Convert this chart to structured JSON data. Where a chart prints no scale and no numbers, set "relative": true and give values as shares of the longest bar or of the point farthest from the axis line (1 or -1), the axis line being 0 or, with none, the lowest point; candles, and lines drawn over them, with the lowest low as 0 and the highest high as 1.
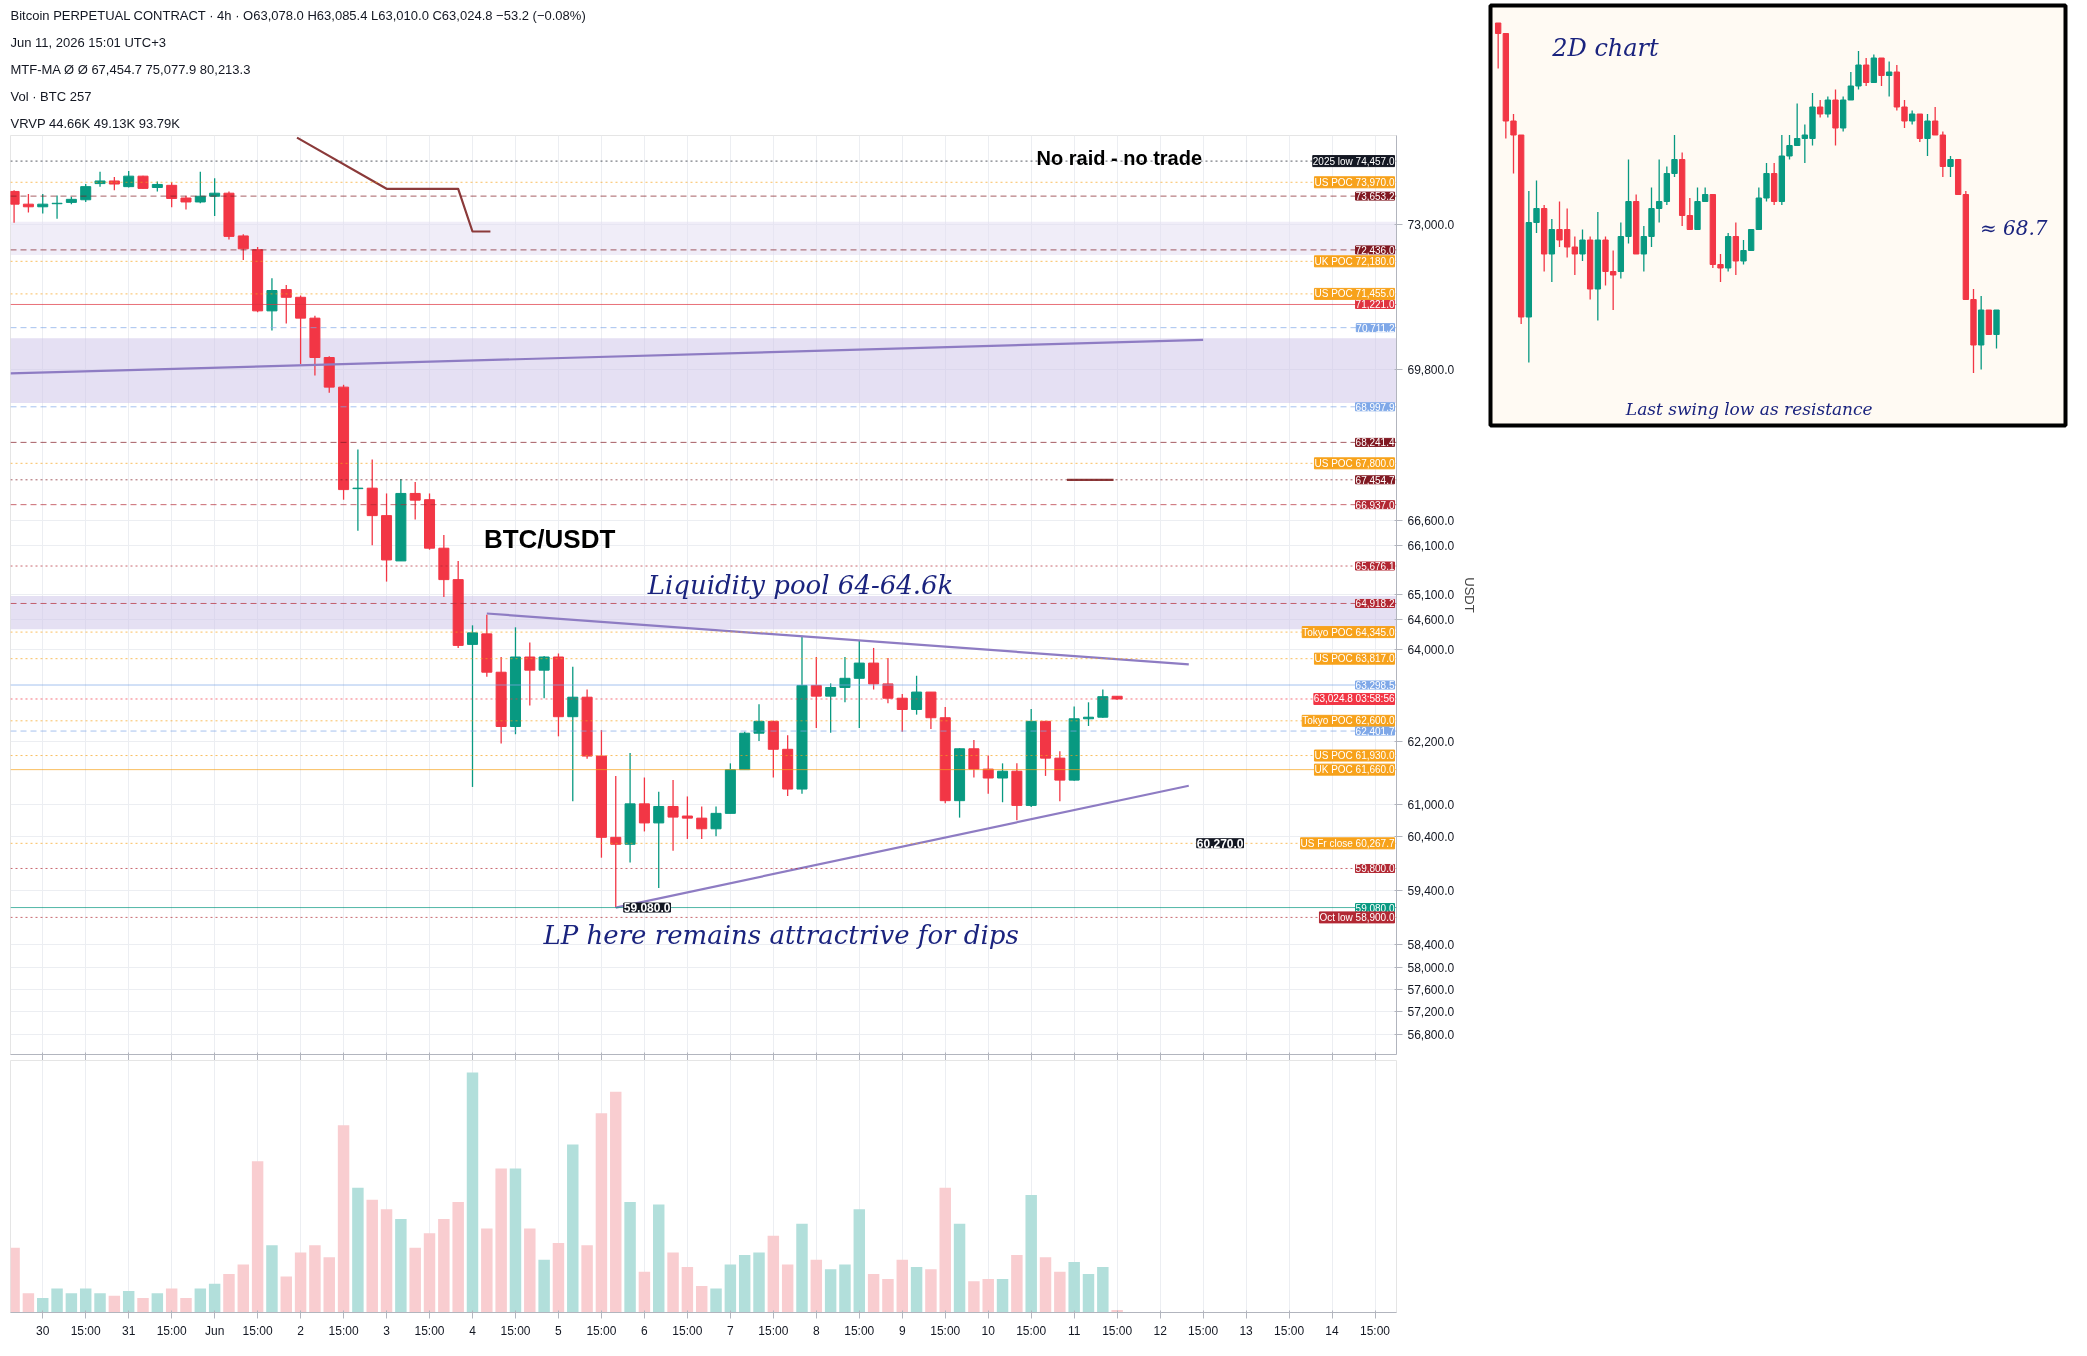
{
  "chart_data": [
    {
      "type": "candlestick",
      "subtitle": "Bitcoin PERPETUAL CONTRACT · 4h · O63,078.0 H63,085.4 L63,010.0 C63,024.8 −53.2 (−0.08%)",
      "ylabel": "USDT",
      "log": true,
      "grid": true,
      "tick_labels": "y",
      "annotations": [
        "Jun 11, 2026 15:01 UTC+3",
        "MTF-MA Ø Ø 67,454.7 75,077.9 80,213.3",
        "Vol · BTC 257",
        "VRVP 44.66K 49.13K 93.79K",
        "BTC/USDT",
        "Liquidity pool 64-64.6k",
        "LP here remains attractrive for dips",
        "No raid - no trade",
        {
          "text": "59,080.0",
          "x": "2026-06-05T19:00",
          "y": 59080
        },
        {
          "text": "60,270.0",
          "x": "2026-06-12T11:00",
          "y": 60270
        }
      ],
      "x": [
        "2026-05-29T19:00",
        "2026-05-29T23:00",
        "2026-05-30T03:00",
        "2026-05-30T07:00",
        "2026-05-30T11:00",
        "2026-05-30T15:00",
        "2026-05-30T19:00",
        "2026-05-30T23:00",
        "2026-05-31T03:00",
        "2026-05-31T07:00",
        "2026-05-31T11:00",
        "2026-05-31T15:00",
        "2026-05-31T19:00",
        "2026-05-31T23:00",
        "2026-06-01T03:00",
        "2026-06-01T07:00",
        "2026-06-01T11:00",
        "2026-06-01T15:00",
        "2026-06-01T19:00",
        "2026-06-01T23:00",
        "2026-06-02T03:00",
        "2026-06-02T07:00",
        "2026-06-02T11:00",
        "2026-06-02T15:00",
        "2026-06-02T19:00",
        "2026-06-02T23:00",
        "2026-06-03T03:00",
        "2026-06-03T07:00",
        "2026-06-03T11:00",
        "2026-06-03T15:00",
        "2026-06-03T19:00",
        "2026-06-03T23:00",
        "2026-06-04T03:00",
        "2026-06-04T07:00",
        "2026-06-04T11:00",
        "2026-06-04T15:00",
        "2026-06-04T19:00",
        "2026-06-04T23:00",
        "2026-06-05T03:00",
        "2026-06-05T07:00",
        "2026-06-05T11:00",
        "2026-06-05T15:00",
        "2026-06-05T19:00",
        "2026-06-05T23:00",
        "2026-06-06T03:00",
        "2026-06-06T07:00",
        "2026-06-06T11:00",
        "2026-06-06T15:00",
        "2026-06-06T19:00",
        "2026-06-06T23:00",
        "2026-06-07T03:00",
        "2026-06-07T07:00",
        "2026-06-07T11:00",
        "2026-06-07T15:00",
        "2026-06-07T19:00",
        "2026-06-07T23:00",
        "2026-06-08T03:00",
        "2026-06-08T07:00",
        "2026-06-08T11:00",
        "2026-06-08T15:00",
        "2026-06-08T19:00",
        "2026-06-08T23:00",
        "2026-06-09T03:00",
        "2026-06-09T07:00",
        "2026-06-09T11:00",
        "2026-06-09T15:00",
        "2026-06-09T19:00",
        "2026-06-09T23:00",
        "2026-06-10T03:00",
        "2026-06-10T07:00",
        "2026-06-10T11:00",
        "2026-06-10T15:00",
        "2026-06-10T19:00",
        "2026-06-10T23:00",
        "2026-06-11T03:00",
        "2026-06-11T07:00",
        "2026-06-11T11:00",
        "2026-06-11T15:00"
      ],
      "ohlc": [
        [
          73760,
          73790,
          73050,
          73470
        ],
        [
          73470,
          73700,
          73280,
          73410
        ],
        [
          73410,
          73700,
          73260,
          73470
        ],
        [
          73480,
          73670,
          73140,
          73490
        ],
        [
          73510,
          73640,
          73470,
          73580
        ],
        [
          73570,
          73930,
          73520,
          73870
        ],
        [
          73940,
          74210,
          73870,
          74000
        ],
        [
          74000,
          74090,
          73790,
          73930
        ],
        [
          73870,
          74230,
          73850,
          74110
        ],
        [
          74110,
          74120,
          73820,
          73830
        ],
        [
          73850,
          73990,
          73760,
          73920
        ],
        [
          73900,
          73970,
          73400,
          73600
        ],
        [
          73610,
          73660,
          73350,
          73520
        ],
        [
          73520,
          74210,
          73490,
          73650
        ],
        [
          73650,
          74060,
          73200,
          73720
        ],
        [
          73720,
          73760,
          72670,
          72740
        ],
        [
          72750,
          72790,
          72210,
          72460
        ],
        [
          72440,
          72500,
          71050,
          71080
        ],
        [
          71080,
          71800,
          70650,
          71530
        ],
        [
          71550,
          71650,
          70800,
          71380
        ],
        [
          71380,
          71420,
          69920,
          70920
        ],
        [
          70920,
          70970,
          69670,
          70060
        ],
        [
          70060,
          70090,
          69300,
          69420
        ],
        [
          69420,
          69470,
          67040,
          67250
        ],
        [
          67270,
          68090,
          66400,
          67280
        ],
        [
          67280,
          67880,
          66100,
          66710
        ],
        [
          66710,
          67170,
          65360,
          65800
        ],
        [
          65780,
          67470,
          65780,
          67170
        ],
        [
          67170,
          67410,
          66630,
          67030
        ],
        [
          67040,
          67170,
          66010,
          66040
        ],
        [
          66040,
          66310,
          65050,
          65400
        ],
        [
          65400,
          65780,
          64030,
          64080
        ],
        [
          64100,
          64480,
          61330,
          64330
        ],
        [
          64310,
          64690,
          63460,
          63550
        ],
        [
          63550,
          63850,
          62160,
          62490
        ],
        [
          62490,
          64440,
          62340,
          63850
        ],
        [
          63850,
          64140,
          62900,
          63590
        ],
        [
          63590,
          63870,
          63040,
          63850
        ],
        [
          63850,
          63920,
          62300,
          62680
        ],
        [
          62680,
          63660,
          61060,
          63060
        ],
        [
          63060,
          63210,
          61870,
          61920
        ],
        [
          61920,
          62420,
          60000,
          60380
        ],
        [
          60380,
          61540,
          59080,
          60250
        ],
        [
          60250,
          61980,
          59910,
          61010
        ],
        [
          61010,
          61510,
          60490,
          60650
        ],
        [
          60650,
          61240,
          59440,
          60960
        ],
        [
          60960,
          61460,
          60130,
          60760
        ],
        [
          60780,
          61150,
          60350,
          60740
        ],
        [
          60740,
          60960,
          60350,
          60540
        ],
        [
          60540,
          60960,
          60400,
          60830
        ],
        [
          60830,
          61780,
          60830,
          61660
        ],
        [
          61660,
          62390,
          61660,
          62360
        ],
        [
          62360,
          62920,
          62210,
          62590
        ],
        [
          62590,
          62600,
          61510,
          62050
        ],
        [
          62050,
          62320,
          61160,
          61290
        ],
        [
          61290,
          64270,
          61200,
          63290
        ],
        [
          63290,
          63850,
          62460,
          63080
        ],
        [
          63080,
          63330,
          62370,
          63250
        ],
        [
          63250,
          63850,
          62960,
          63430
        ],
        [
          63430,
          64170,
          62460,
          63730
        ],
        [
          63730,
          64030,
          63210,
          63320
        ],
        [
          63320,
          63830,
          62940,
          63040
        ],
        [
          63040,
          63120,
          62390,
          62820
        ],
        [
          62820,
          63480,
          62720,
          63160
        ],
        [
          63160,
          63160,
          62440,
          62660
        ],
        [
          62660,
          62870,
          61020,
          61070
        ],
        [
          61070,
          62070,
          60750,
          62060
        ],
        [
          62060,
          62230,
          61510,
          61670
        ],
        [
          61670,
          61930,
          61200,
          61500
        ],
        [
          61500,
          61780,
          61040,
          61630
        ],
        [
          61630,
          61780,
          60700,
          60980
        ],
        [
          60980,
          62830,
          60950,
          62590
        ],
        [
          62590,
          62600,
          61540,
          61880
        ],
        [
          61880,
          62010,
          61060,
          61460
        ],
        [
          61460,
          62880,
          61450,
          62640
        ],
        [
          62640,
          62960,
          62500,
          62670
        ],
        [
          62670,
          63210,
          62660,
          63070
        ],
        [
          63078.0,
          63085.4,
          63010.0,
          63024.8
        ]
      ],
      "series": [
        {
          "type": "line",
          "color": "#8e7cc3",
          "x": [
            "2026-05-29T18:00",
            "2026-06-12T15:00"
          ],
          "values": [
            69715,
            70442
          ]
        },
        {
          "type": "line",
          "color": "#8e7cc3",
          "x": [
            "2026-06-04T07:00",
            "2026-06-12T11:00"
          ],
          "values": [
            64717,
            63706
          ]
        },
        {
          "type": "line",
          "color": "#8e7cc3",
          "x": [
            "2026-06-05T19:00",
            "2026-06-12T11:00"
          ],
          "values": [
            59080,
            61353
          ]
        },
        {
          "type": "line",
          "color": "#8b3a3a",
          "x": [
            "2026-06-02T02:00",
            "2026-06-03T03:00",
            "2026-06-03T23:00",
            "2026-06-04T03:00",
            "2026-06-04T08:00",
            "2026-06-07T00:00",
            "2026-06-11T01:00",
            "2026-06-11T14:00"
          ],
          "values": [
            75000,
            73820,
            73820,
            72850,
            72850,
            null,
            67455,
            67455
          ]
        }
      ],
      "bands": [
        {
          "axis": "y",
          "from": 72320,
          "to": 73070,
          "color": "#e3dff3"
        },
        {
          "axis": "y",
          "from": 69080,
          "to": 70480,
          "color": "#cfc6ea"
        },
        {
          "axis": "y",
          "from": 64400,
          "to": 65070,
          "color": "#cfc6ea"
        }
      ],
      "ref_lines": [
        {
          "axis": "y",
          "value": 74457.0,
          "label": "2025 low 74,457.0",
          "color": "#131722",
          "line_style": "dotted"
        },
        {
          "axis": "y",
          "value": 73970.0,
          "label": "US POC 73,970.0",
          "color": "#f7a21b",
          "line_style": "dotted"
        },
        {
          "axis": "y",
          "value": 73653.2,
          "label": "73,653.2",
          "color": "#801922",
          "line_style": "dashed"
        },
        {
          "axis": "y",
          "value": 72436.0,
          "label": "72,436.0",
          "color": "#801922",
          "line_style": "dashed"
        },
        {
          "axis": "y",
          "value": 72180.0,
          "label": "UK POC 72,180.0",
          "color": "#f7a21b",
          "line_style": "dotted"
        },
        {
          "axis": "y",
          "value": 71455.0,
          "label": "US POC 71,455.0",
          "color": "#f7a21b",
          "line_style": "dotted"
        },
        {
          "axis": "y",
          "value": 71221.0,
          "label": "71,221.0",
          "color": "#e03340",
          "line_style": "solid"
        },
        {
          "axis": "y",
          "value": 70711.2,
          "label": "70,711.2",
          "color": "#7fa8e8",
          "line_style": "dashed"
        },
        {
          "axis": "y",
          "value": 68997.9,
          "label": "68,997.9",
          "color": "#7fa8e8",
          "line_style": "dashed"
        },
        {
          "axis": "y",
          "value": 68241.4,
          "label": "68,241.4",
          "color": "#801922",
          "line_style": "dashed"
        },
        {
          "axis": "y",
          "value": 67800.0,
          "label": "US POC 67,800.0",
          "color": "#f7a21b",
          "line_style": "dotted"
        },
        {
          "axis": "y",
          "value": 67454.7,
          "label": "67,454.7",
          "color": "#801922",
          "line_style": "dotted"
        },
        {
          "axis": "y",
          "value": 66937.0,
          "label": "66,937.0",
          "color": "#b22833",
          "line_style": "dashed"
        },
        {
          "axis": "y",
          "value": 65676.1,
          "label": "65,676.1",
          "color": "#b22833",
          "line_style": "dotted"
        },
        {
          "axis": "y",
          "value": 64918.2,
          "label": "64,918.2",
          "color": "#b22833",
          "line_style": "dashed"
        },
        {
          "axis": "y",
          "value": 64345.0,
          "label": "Tokyo POC 64,345.0",
          "color": "#f7a21b",
          "line_style": "dotted"
        },
        {
          "axis": "y",
          "value": 63817.0,
          "label": "US POC 63,817.0",
          "color": "#f7a21b",
          "line_style": "dotted"
        },
        {
          "axis": "y",
          "value": 63298.5,
          "label": "63,298.5",
          "color": "#7fa8e8",
          "line_style": "solid"
        },
        {
          "axis": "y",
          "value": 63024.8,
          "label": "63,024.8 03:58:56",
          "color": "#f23645",
          "line_style": "dotted"
        },
        {
          "axis": "y",
          "value": 62600.0,
          "label": "Tokyo POC 62,600.0",
          "color": "#f7a21b",
          "line_style": "dotted"
        },
        {
          "axis": "y",
          "value": 62401.7,
          "label": "62,401.7",
          "color": "#7fa8e8",
          "line_style": "dashed"
        },
        {
          "axis": "y",
          "value": 61930.0,
          "label": "US POC 61,930.0",
          "color": "#f7a21b",
          "line_style": "dotted"
        },
        {
          "axis": "y",
          "value": 61660.0,
          "label": "UK POC 61,660.0",
          "color": "#f7a21b",
          "line_style": "solid"
        },
        {
          "axis": "y",
          "value": 60267.7,
          "label": "US Fr close 60,267.7",
          "color": "#f7a21b",
          "line_style": "dotted"
        },
        {
          "axis": "y",
          "value": 59800.0,
          "label": "59,800.0",
          "color": "#b22833",
          "line_style": "dotted"
        },
        {
          "axis": "y",
          "value": 59080.0,
          "label": "59,080.0",
          "color": "#089981",
          "line_style": "solid"
        },
        {
          "axis": "y",
          "value": 58900.0,
          "label": "Oct low 58,900.0",
          "color": "#b22833",
          "line_style": "dotted"
        }
      ],
      "xlim": [
        "2026-05-29T18:00",
        "2026-06-14T21:00"
      ],
      "xticks": [
        {
          "value": "2026-05-30T03:00",
          "label": null
        },
        {
          "value": "2026-05-30T15:00",
          "label": null
        },
        {
          "value": "2026-05-31T03:00",
          "label": null
        },
        {
          "value": "2026-05-31T15:00",
          "label": null
        },
        {
          "value": "2026-06-01T03:00",
          "label": null
        },
        {
          "value": "2026-06-01T15:00",
          "label": null
        },
        {
          "value": "2026-06-02T03:00",
          "label": null
        },
        {
          "value": "2026-06-02T15:00",
          "label": null
        },
        {
          "value": "2026-06-03T03:00",
          "label": null
        },
        {
          "value": "2026-06-03T15:00",
          "label": null
        },
        {
          "value": "2026-06-04T03:00",
          "label": null
        },
        {
          "value": "2026-06-04T15:00",
          "label": null
        },
        {
          "value": "2026-06-05T03:00",
          "label": null
        },
        {
          "value": "2026-06-05T15:00",
          "label": null
        },
        {
          "value": "2026-06-06T03:00",
          "label": null
        },
        {
          "value": "2026-06-06T15:00",
          "label": null
        },
        {
          "value": "2026-06-07T03:00",
          "label": null
        },
        {
          "value": "2026-06-07T15:00",
          "label": null
        },
        {
          "value": "2026-06-08T03:00",
          "label": null
        },
        {
          "value": "2026-06-08T15:00",
          "label": null
        },
        {
          "value": "2026-06-09T03:00",
          "label": null
        },
        {
          "value": "2026-06-09T15:00",
          "label": null
        },
        {
          "value": "2026-06-10T03:00",
          "label": null
        },
        {
          "value": "2026-06-10T15:00",
          "label": null
        },
        {
          "value": "2026-06-11T03:00",
          "label": null
        },
        {
          "value": "2026-06-11T15:00",
          "label": null
        },
        {
          "value": "2026-06-12T03:00",
          "label": null
        },
        {
          "value": "2026-06-12T15:00",
          "label": null
        },
        {
          "value": "2026-06-13T03:00",
          "label": null
        },
        {
          "value": "2026-06-13T15:00",
          "label": null
        },
        {
          "value": "2026-06-14T03:00",
          "label": null
        },
        {
          "value": "2026-06-14T15:00",
          "label": null
        }
      ],
      "ylim": [
        56450,
        75050
      ],
      "yticks": [
        {
          "value": 73000,
          "label": "73,000.0"
        },
        {
          "value": 69800,
          "label": "69,800.0"
        },
        {
          "value": 66600,
          "label": "66,600.0"
        },
        {
          "value": 66100,
          "label": "66,100.0"
        },
        {
          "value": 65100,
          "label": "65,100.0"
        },
        {
          "value": 64600,
          "label": "64,600.0"
        },
        {
          "value": 64000,
          "label": "64,000.0"
        },
        {
          "value": 62200,
          "label": "62,200.0"
        },
        {
          "value": 61000,
          "label": "61,000.0"
        },
        {
          "value": 60400,
          "label": "60,400.0"
        },
        {
          "value": 59400,
          "label": "59,400.0"
        },
        {
          "value": 58400,
          "label": "58,400.0"
        },
        {
          "value": 58000,
          "label": "58,000.0"
        },
        {
          "value": 57600,
          "label": "57,600.0"
        },
        {
          "value": 57200,
          "label": "57,200.0"
        },
        {
          "value": 56800,
          "label": "56,800.0"
        }
      ]
    },
    {
      "type": "bar",
      "relative": true,
      "grid": "x",
      "tick_labels": "x",
      "xlim": [
        "2026-05-29T18:00",
        "2026-06-14T21:00"
      ],
      "xticks": [
        {
          "value": "2026-05-30T03:00",
          "label": "30"
        },
        {
          "value": "2026-05-30T15:00",
          "label": "15:00"
        },
        {
          "value": "2026-05-31T03:00",
          "label": "31"
        },
        {
          "value": "2026-05-31T15:00",
          "label": "15:00"
        },
        {
          "value": "2026-06-01T03:00",
          "label": "Jun"
        },
        {
          "value": "2026-06-01T15:00",
          "label": "15:00"
        },
        {
          "value": "2026-06-02T03:00",
          "label": "2"
        },
        {
          "value": "2026-06-02T15:00",
          "label": "15:00"
        },
        {
          "value": "2026-06-03T03:00",
          "label": "3"
        },
        {
          "value": "2026-06-03T15:00",
          "label": "15:00"
        },
        {
          "value": "2026-06-04T03:00",
          "label": "4"
        },
        {
          "value": "2026-06-04T15:00",
          "label": "15:00"
        },
        {
          "value": "2026-06-05T03:00",
          "label": "5"
        },
        {
          "value": "2026-06-05T15:00",
          "label": "15:00"
        },
        {
          "value": "2026-06-06T03:00",
          "label": "6"
        },
        {
          "value": "2026-06-06T15:00",
          "label": "15:00"
        },
        {
          "value": "2026-06-07T03:00",
          "label": "7"
        },
        {
          "value": "2026-06-07T15:00",
          "label": "15:00"
        },
        {
          "value": "2026-06-08T03:00",
          "label": "8"
        },
        {
          "value": "2026-06-08T15:00",
          "label": "15:00"
        },
        {
          "value": "2026-06-09T03:00",
          "label": "9"
        },
        {
          "value": "2026-06-09T15:00",
          "label": "15:00"
        },
        {
          "value": "2026-06-10T03:00",
          "label": "10"
        },
        {
          "value": "2026-06-10T15:00",
          "label": "15:00"
        },
        {
          "value": "2026-06-11T03:00",
          "label": "11"
        },
        {
          "value": "2026-06-11T15:00",
          "label": "15:00"
        },
        {
          "value": "2026-06-12T03:00",
          "label": "12"
        },
        {
          "value": "2026-06-12T15:00",
          "label": "15:00"
        },
        {
          "value": "2026-06-13T03:00",
          "label": "13"
        },
        {
          "value": "2026-06-13T15:00",
          "label": "15:00"
        },
        {
          "value": "2026-06-14T03:00",
          "label": "14"
        },
        {
          "value": "2026-06-14T15:00",
          "label": "15:00"
        }
      ],
      "x": [
        "2026-05-29T19:00",
        "2026-05-29T23:00",
        "2026-05-30T03:00",
        "2026-05-30T07:00",
        "2026-05-30T11:00",
        "2026-05-30T15:00",
        "2026-05-30T19:00",
        "2026-05-30T23:00",
        "2026-05-31T03:00",
        "2026-05-31T07:00",
        "2026-05-31T11:00",
        "2026-05-31T15:00",
        "2026-05-31T19:00",
        "2026-05-31T23:00",
        "2026-06-01T03:00",
        "2026-06-01T07:00",
        "2026-06-01T11:00",
        "2026-06-01T15:00",
        "2026-06-01T19:00",
        "2026-06-01T23:00",
        "2026-06-02T03:00",
        "2026-06-02T07:00",
        "2026-06-02T11:00",
        "2026-06-02T15:00",
        "2026-06-02T19:00",
        "2026-06-02T23:00",
        "2026-06-03T03:00",
        "2026-06-03T07:00",
        "2026-06-03T11:00",
        "2026-06-03T15:00",
        "2026-06-03T19:00",
        "2026-06-03T23:00",
        "2026-06-04T03:00",
        "2026-06-04T07:00",
        "2026-06-04T11:00",
        "2026-06-04T15:00",
        "2026-06-04T19:00",
        "2026-06-04T23:00",
        "2026-06-05T03:00",
        "2026-06-05T07:00",
        "2026-06-05T11:00",
        "2026-06-05T15:00",
        "2026-06-05T19:00",
        "2026-06-05T23:00",
        "2026-06-06T03:00",
        "2026-06-06T07:00",
        "2026-06-06T11:00",
        "2026-06-06T15:00",
        "2026-06-06T19:00",
        "2026-06-06T23:00",
        "2026-06-07T03:00",
        "2026-06-07T07:00",
        "2026-06-07T11:00",
        "2026-06-07T15:00",
        "2026-06-07T19:00",
        "2026-06-07T23:00",
        "2026-06-08T03:00",
        "2026-06-08T07:00",
        "2026-06-08T11:00",
        "2026-06-08T15:00",
        "2026-06-08T19:00",
        "2026-06-08T23:00",
        "2026-06-09T03:00",
        "2026-06-09T07:00",
        "2026-06-09T11:00",
        "2026-06-09T15:00",
        "2026-06-09T19:00",
        "2026-06-09T23:00",
        "2026-06-10T03:00",
        "2026-06-10T07:00",
        "2026-06-10T11:00",
        "2026-06-10T15:00",
        "2026-06-10T19:00",
        "2026-06-10T23:00",
        "2026-06-11T03:00",
        "2026-06-11T07:00",
        "2026-06-11T11:00",
        "2026-06-11T15:00"
      ],
      "values": [
        0.27,
        0.08,
        0.06,
        0.1,
        0.08,
        0.1,
        0.08,
        0.07,
        0.09,
        0.06,
        0.08,
        0.1,
        0.06,
        0.1,
        0.12,
        0.16,
        0.2,
        0.63,
        0.28,
        0.15,
        0.25,
        0.28,
        0.23,
        0.78,
        0.52,
        0.47,
        0.43,
        0.39,
        0.27,
        0.33,
        0.39,
        0.46,
        1.0,
        0.35,
        0.6,
        0.6,
        0.35,
        0.22,
        0.29,
        0.7,
        0.28,
        0.83,
        0.92,
        0.46,
        0.17,
        0.45,
        0.25,
        0.19,
        0.11,
        0.1,
        0.2,
        0.24,
        0.25,
        0.32,
        0.2,
        0.37,
        0.22,
        0.18,
        0.2,
        0.43,
        0.16,
        0.14,
        0.22,
        0.19,
        0.18,
        0.52,
        0.37,
        0.13,
        0.14,
        0.14,
        0.24,
        0.49,
        0.23,
        0.17,
        0.21,
        0.16,
        0.19,
        0.01
      ],
      "colors": [
        "#f9cdd0",
        "#f9cdd0",
        "#b2dfdb",
        "#b2dfdb",
        "#b2dfdb",
        "#b2dfdb",
        "#b2dfdb",
        "#f9cdd0",
        "#b2dfdb",
        "#f9cdd0",
        "#b2dfdb",
        "#f9cdd0",
        "#f9cdd0",
        "#b2dfdb",
        "#b2dfdb",
        "#f9cdd0",
        "#f9cdd0",
        "#f9cdd0",
        "#b2dfdb",
        "#f9cdd0",
        "#f9cdd0",
        "#f9cdd0",
        "#f9cdd0",
        "#f9cdd0",
        "#b2dfdb",
        "#f9cdd0",
        "#f9cdd0",
        "#b2dfdb",
        "#f9cdd0",
        "#f9cdd0",
        "#f9cdd0",
        "#f9cdd0",
        "#b2dfdb",
        "#f9cdd0",
        "#f9cdd0",
        "#b2dfdb",
        "#f9cdd0",
        "#b2dfdb",
        "#f9cdd0",
        "#b2dfdb",
        "#f9cdd0",
        "#f9cdd0",
        "#f9cdd0",
        "#b2dfdb",
        "#f9cdd0",
        "#b2dfdb",
        "#f9cdd0",
        "#f9cdd0",
        "#f9cdd0",
        "#b2dfdb",
        "#b2dfdb",
        "#b2dfdb",
        "#b2dfdb",
        "#f9cdd0",
        "#f9cdd0",
        "#b2dfdb",
        "#f9cdd0",
        "#b2dfdb",
        "#b2dfdb",
        "#b2dfdb",
        "#f9cdd0",
        "#f9cdd0",
        "#f9cdd0",
        "#b2dfdb",
        "#f9cdd0",
        "#f9cdd0",
        "#b2dfdb",
        "#f9cdd0",
        "#f9cdd0",
        "#b2dfdb",
        "#f9cdd0",
        "#b2dfdb",
        "#f9cdd0",
        "#f9cdd0",
        "#b2dfdb",
        "#b2dfdb",
        "#b2dfdb",
        "#f9cdd0"
      ]
    },
    {
      "type": "candlestick",
      "relative": true,
      "annotations": [
        "2D chart",
        "≈ 68.7",
        "Last swing low as resistance"
      ],
      "categories": [
        null,
        null,
        null,
        null,
        null,
        null,
        null,
        null,
        null,
        null,
        null,
        null,
        null,
        null,
        null,
        null,
        null,
        null,
        null,
        null,
        null,
        null,
        null,
        null,
        null,
        null,
        null,
        null,
        null,
        null,
        null,
        null,
        null,
        null,
        null,
        null,
        null,
        null,
        null,
        null,
        null,
        null,
        null,
        null,
        null,
        null,
        null,
        null,
        null,
        null,
        null,
        null,
        null,
        null,
        null,
        null,
        null,
        null,
        null,
        null,
        null,
        null,
        null,
        null,
        null,
        null
      ],
      "ohlc": [
        [
          1.0,
          1.0,
          0.87,
          0.97
        ],
        [
          0.97,
          0.97,
          0.67,
          0.72
        ],
        [
          0.72,
          0.74,
          0.57,
          0.68
        ],
        [
          0.68,
          0.68,
          0.14,
          0.16
        ],
        [
          0.16,
          0.52,
          0.03,
          0.43
        ],
        [
          0.43,
          0.55,
          0.4,
          0.47
        ],
        [
          0.47,
          0.48,
          0.29,
          0.34
        ],
        [
          0.34,
          0.44,
          0.26,
          0.41
        ],
        [
          0.41,
          0.49,
          0.36,
          0.38
        ],
        [
          0.41,
          0.47,
          0.33,
          0.36
        ],
        [
          0.36,
          0.39,
          0.28,
          0.34
        ],
        [
          0.34,
          0.41,
          0.32,
          0.38
        ],
        [
          0.38,
          0.39,
          0.21,
          0.24
        ],
        [
          0.24,
          0.46,
          0.15,
          0.38
        ],
        [
          0.38,
          0.39,
          0.25,
          0.29
        ],
        [
          0.29,
          0.35,
          0.18,
          0.28
        ],
        [
          0.29,
          0.43,
          0.27,
          0.39
        ],
        [
          0.39,
          0.61,
          0.37,
          0.49
        ],
        [
          0.49,
          0.51,
          0.34,
          0.34
        ],
        [
          0.34,
          0.42,
          0.29,
          0.39
        ],
        [
          0.39,
          0.53,
          0.36,
          0.47
        ],
        [
          0.47,
          0.61,
          0.43,
          0.49
        ],
        [
          0.49,
          0.59,
          0.48,
          0.57
        ],
        [
          0.57,
          0.68,
          0.56,
          0.61
        ],
        [
          0.61,
          0.63,
          0.42,
          0.45
        ],
        [
          0.45,
          0.5,
          0.41,
          0.41
        ],
        [
          0.41,
          0.53,
          0.41,
          0.49
        ],
        [
          0.49,
          0.53,
          0.49,
          0.51
        ],
        [
          0.51,
          0.51,
          0.3,
          0.31
        ],
        [
          0.31,
          0.34,
          0.26,
          0.3
        ],
        [
          0.3,
          0.4,
          0.29,
          0.39
        ],
        [
          0.39,
          0.43,
          0.28,
          0.32
        ],
        [
          0.32,
          0.38,
          0.31,
          0.35
        ],
        [
          0.35,
          0.41,
          0.35,
          0.41
        ],
        [
          0.41,
          0.53,
          0.41,
          0.5
        ],
        [
          0.5,
          0.6,
          0.49,
          0.57
        ],
        [
          0.57,
          0.6,
          0.48,
          0.49
        ],
        [
          0.49,
          0.68,
          0.48,
          0.62
        ],
        [
          0.62,
          0.68,
          0.61,
          0.65
        ],
        [
          0.65,
          0.77,
          0.65,
          0.67
        ],
        [
          0.67,
          0.71,
          0.6,
          0.68
        ],
        [
          0.67,
          0.8,
          0.65,
          0.76
        ],
        [
          0.76,
          0.78,
          0.73,
          0.74
        ],
        [
          0.74,
          0.79,
          0.73,
          0.78
        ],
        [
          0.78,
          0.81,
          0.65,
          0.7
        ],
        [
          0.7,
          0.79,
          0.69,
          0.78
        ],
        [
          0.78,
          0.86,
          0.78,
          0.82
        ],
        [
          0.82,
          0.92,
          0.81,
          0.88
        ],
        [
          0.88,
          0.9,
          0.82,
          0.83
        ],
        [
          0.83,
          0.91,
          0.83,
          0.9
        ],
        [
          0.9,
          0.9,
          0.82,
          0.85
        ],
        [
          0.85,
          0.89,
          0.79,
          0.86
        ],
        [
          0.86,
          0.88,
          0.75,
          0.76
        ],
        [
          0.76,
          0.78,
          0.7,
          0.72
        ],
        [
          0.72,
          0.75,
          0.71,
          0.74
        ],
        [
          0.74,
          0.74,
          0.66,
          0.67
        ],
        [
          0.67,
          0.74,
          0.62,
          0.72
        ],
        [
          0.72,
          0.76,
          0.68,
          0.68
        ],
        [
          0.68,
          0.69,
          0.56,
          0.59
        ],
        [
          0.59,
          0.62,
          0.56,
          0.61
        ],
        [
          0.61,
          0.61,
          0.51,
          0.51
        ],
        [
          0.51,
          0.52,
          0.21,
          0.21
        ],
        [
          0.21,
          0.24,
          0.0,
          0.08
        ],
        [
          0.08,
          0.22,
          0.01,
          0.18
        ],
        [
          0.18,
          0.18,
          0.11,
          0.11
        ],
        [
          0.11,
          0.18,
          0.07,
          0.18
        ]
      ]
    }
  ]
}
